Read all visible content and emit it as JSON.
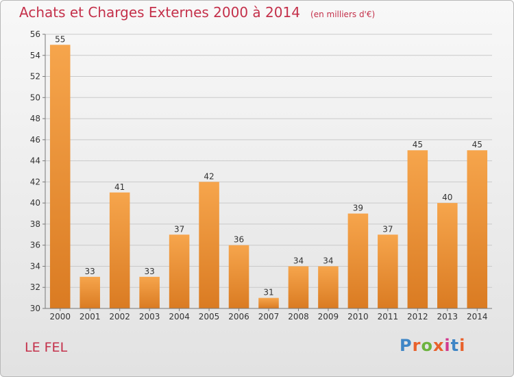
{
  "chart_data": {
    "type": "bar",
    "title": "Achats et Charges Externes 2000 à 2014",
    "subtitle": "(en milliers d'€)",
    "categories": [
      "2000",
      "2001",
      "2002",
      "2003",
      "2004",
      "2005",
      "2006",
      "2007",
      "2008",
      "2009",
      "2010",
      "2011",
      "2012",
      "2013",
      "2014"
    ],
    "values": [
      55,
      33,
      41,
      33,
      37,
      42,
      36,
      31,
      34,
      34,
      39,
      37,
      45,
      40,
      45
    ],
    "ylim": [
      30,
      56
    ],
    "yticks": [
      30,
      32,
      34,
      36,
      38,
      40,
      42,
      44,
      46,
      48,
      50,
      52,
      54,
      56
    ],
    "grid": true,
    "colors": {
      "bar_light": "#f6a54c",
      "bar_dark": "#da7b22",
      "title": "#c4304a"
    }
  },
  "location": "LE FEL",
  "logo": {
    "text": "Proxiti",
    "letter_colors": [
      "#3f86c6",
      "#e8612c",
      "#6cb33f",
      "#e8612c",
      "#d23a8e",
      "#3f86c6",
      "#e8612c"
    ]
  }
}
